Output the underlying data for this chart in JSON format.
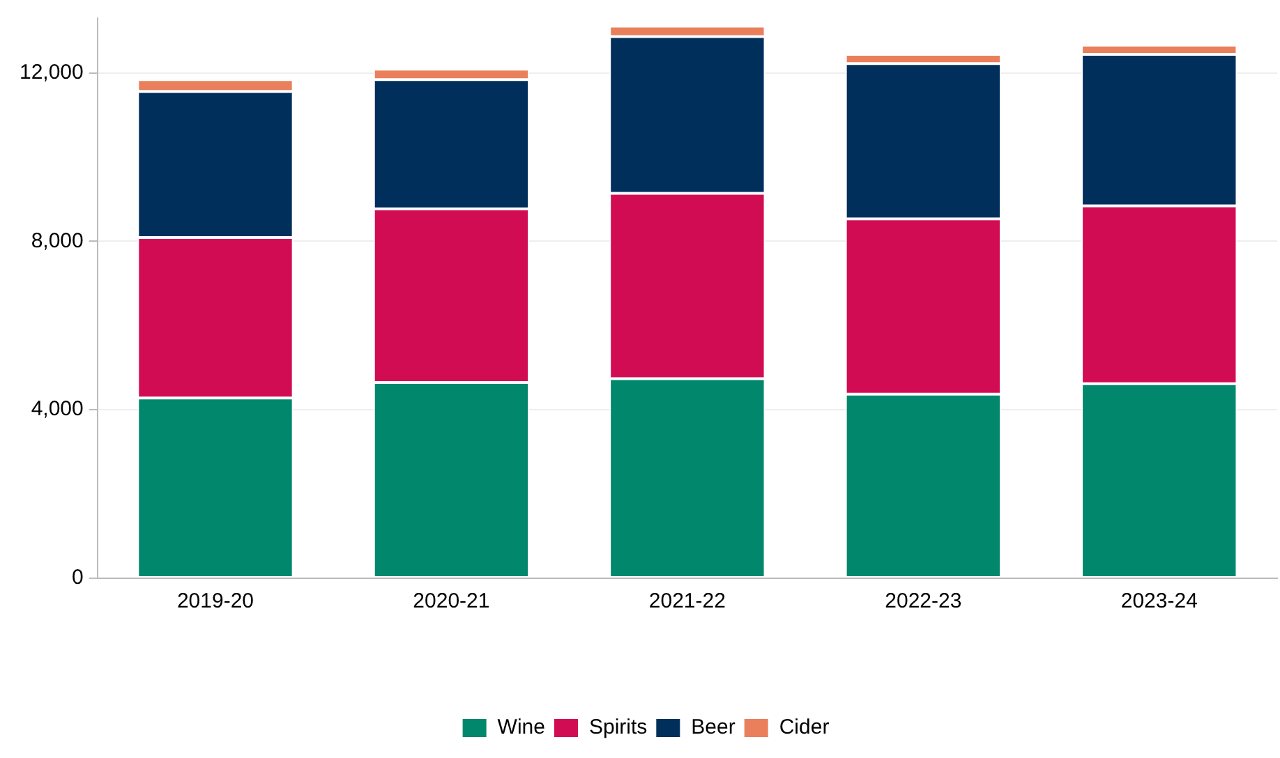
{
  "chart_data": {
    "type": "bar",
    "stacked": true,
    "categories": [
      "2019-20",
      "2020-21",
      "2021-22",
      "2022-23",
      "2023-24"
    ],
    "series": [
      {
        "name": "Wine",
        "color": "#00876c",
        "values": [
          4280,
          4650,
          4740,
          4370,
          4620
        ]
      },
      {
        "name": "Spirits",
        "color": "#d20c52",
        "values": [
          3810,
          4120,
          4400,
          4160,
          4220
        ]
      },
      {
        "name": "Beer",
        "color": "#002f5c",
        "values": [
          3470,
          3070,
          3720,
          3690,
          3600
        ]
      },
      {
        "name": "Cider",
        "color": "#ea7f5c",
        "values": [
          280,
          250,
          250,
          220,
          220
        ]
      }
    ],
    "ylim": [
      0,
      13300
    ],
    "yticks": [
      {
        "value": 0,
        "label": "0"
      },
      {
        "value": 4000,
        "label": "4,000"
      },
      {
        "value": 8000,
        "label": "8,000"
      },
      {
        "value": 12000,
        "label": "12,000"
      }
    ],
    "grid": "y",
    "legend": "bottom"
  }
}
